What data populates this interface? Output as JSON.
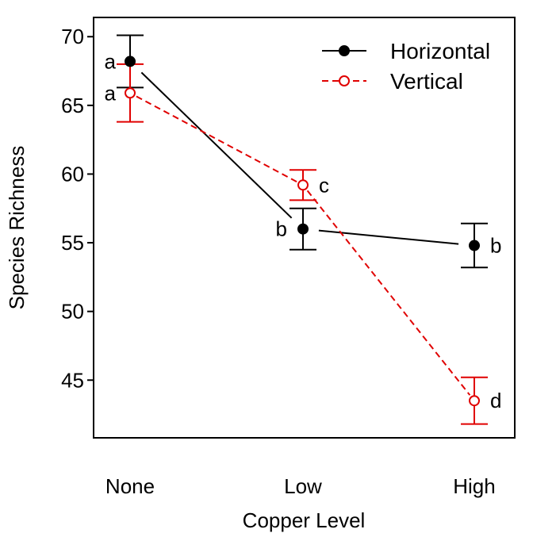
{
  "chart_data": {
    "type": "line",
    "title": "",
    "xlabel": "Copper Level",
    "ylabel": "Species Richness",
    "categories": [
      "None",
      "Low",
      "High"
    ],
    "ylim": [
      40.8,
      71.4
    ],
    "yticks": [
      45,
      50,
      55,
      60,
      65,
      70
    ],
    "grid": false,
    "legend_position": "top-right",
    "series": [
      {
        "name": "Horizontal",
        "color": "#000000",
        "line_style": "solid",
        "marker": "filled-circle",
        "values": [
          68.2,
          56.0,
          54.8
        ],
        "error_low": [
          66.3,
          54.5,
          53.2
        ],
        "error_high": [
          70.1,
          57.5,
          56.4
        ],
        "group_letters": [
          "a",
          "b",
          "b"
        ]
      },
      {
        "name": "Vertical",
        "color": "#e00000",
        "line_style": "dashed",
        "marker": "open-circle",
        "values": [
          65.9,
          59.2,
          43.5
        ],
        "error_low": [
          63.8,
          58.1,
          41.8
        ],
        "error_high": [
          68.0,
          60.3,
          45.2
        ],
        "group_letters": [
          "a",
          "c",
          "d"
        ]
      }
    ]
  }
}
